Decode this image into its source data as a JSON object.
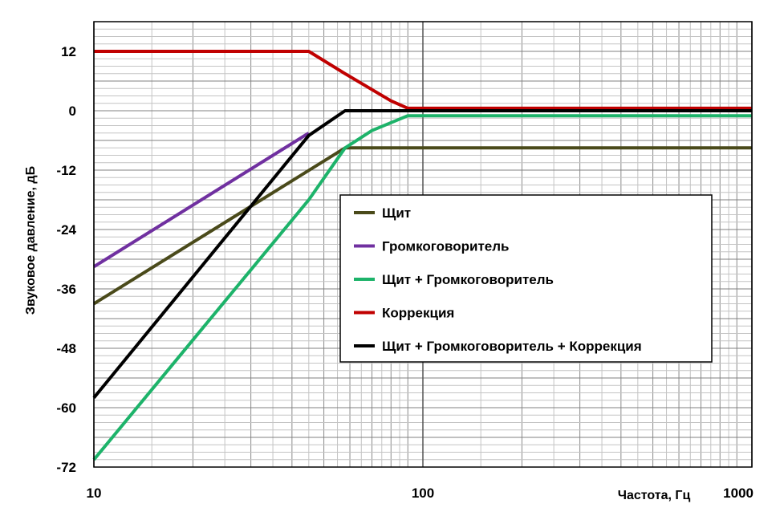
{
  "chart_data": {
    "type": "line",
    "xlabel": "Частота, Гц",
    "ylabel": "Звуковое давление, дБ",
    "x_scale": "log",
    "xlim": [
      10,
      1000
    ],
    "ylim": [
      -72,
      18
    ],
    "x_ticks": [
      10,
      100,
      1000
    ],
    "y_ticks": [
      12,
      0,
      -12,
      -24,
      -36,
      -48,
      -60,
      -72
    ],
    "grid": true,
    "legend_position": "center-right",
    "series": [
      {
        "name": "Щит",
        "color": "#4a4a1a",
        "points": [
          [
            10,
            -39
          ],
          [
            58,
            -7.5
          ],
          [
            1000,
            -7.5
          ]
        ]
      },
      {
        "name": "Громкоговоритель",
        "color": "#7030a0",
        "points": [
          [
            10,
            -31.5
          ],
          [
            45,
            -4.5
          ]
        ]
      },
      {
        "name": "Щит + Громкоговоритель",
        "color": "#1db36a",
        "points": [
          [
            10,
            -70.5
          ],
          [
            45,
            -18
          ],
          [
            58,
            -7.5
          ],
          [
            70,
            -4
          ],
          [
            90,
            -1
          ],
          [
            1000,
            -1
          ]
        ]
      },
      {
        "name": "Коррекция",
        "color": "#c00000",
        "points": [
          [
            10,
            12
          ],
          [
            45,
            12
          ],
          [
            58,
            7.5
          ],
          [
            80,
            2
          ],
          [
            90,
            0.5
          ],
          [
            1000,
            0.5
          ]
        ]
      },
      {
        "name": "Щит + Громкоговоритель + Коррекция",
        "color": "#000000",
        "points": [
          [
            10,
            -58
          ],
          [
            45,
            -5
          ],
          [
            58,
            0
          ],
          [
            1000,
            0
          ]
        ]
      }
    ]
  }
}
